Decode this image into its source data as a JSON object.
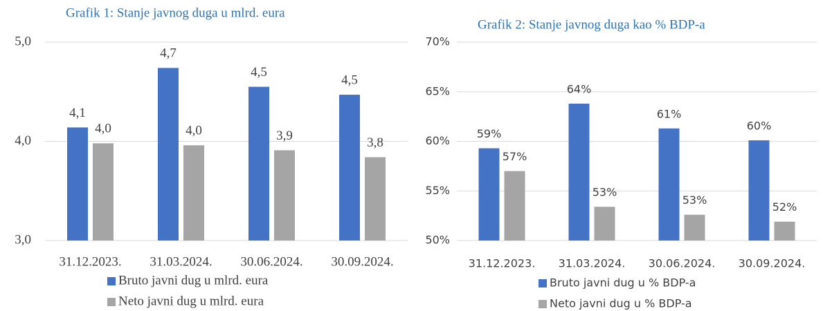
{
  "chart_data": [
    {
      "type": "bar",
      "title": "Grafik 1: Stanje javnog duga u mlrd. eura",
      "categories": [
        "31.12.2023.",
        "31.03.2024.",
        "30.06.2024.",
        "30.09.2024."
      ],
      "series": [
        {
          "name": "Bruto javni dug u mlrd. eura",
          "color": "#4472c4",
          "values": [
            4.14,
            4.74,
            4.55,
            4.47
          ],
          "value_labels": [
            "4,1",
            "4,7",
            "4,5",
            "4,5"
          ]
        },
        {
          "name": "Neto javni dug u mlrd. eura",
          "color": "#a5a5a5",
          "values": [
            3.98,
            3.96,
            3.91,
            3.84
          ],
          "value_labels": [
            "4,0",
            "4,0",
            "3,9",
            "3,8"
          ]
        }
      ],
      "ylim": [
        3.0,
        5.0
      ],
      "yticks": [
        {
          "value": 3.0,
          "label": "3,0"
        },
        {
          "value": 4.0,
          "label": "4,0"
        },
        {
          "value": 5.0,
          "label": "5,0"
        }
      ],
      "grid": true,
      "legend": "bottom"
    },
    {
      "type": "bar",
      "title": "Grafik 2: Stanje javnog duga kao % BDP-a",
      "categories": [
        "31.12.2023.",
        "31.03.2024.",
        "30.06.2024.",
        "30.09.2024."
      ],
      "series": [
        {
          "name": "Bruto javni dug u % BDP-a",
          "color": "#4472c4",
          "values": [
            59.3,
            63.8,
            61.3,
            60.1
          ],
          "value_labels": [
            "59%",
            "64%",
            "61%",
            "60%"
          ]
        },
        {
          "name": "Neto javni dug u % BDP-a",
          "color": "#a5a5a5",
          "values": [
            57.0,
            53.4,
            52.6,
            51.9
          ],
          "value_labels": [
            "57%",
            "53%",
            "53%",
            "52%"
          ]
        }
      ],
      "ylim": [
        50,
        70
      ],
      "yticks": [
        {
          "value": 50,
          "label": "50%"
        },
        {
          "value": 55,
          "label": "55%"
        },
        {
          "value": 60,
          "label": "60%"
        },
        {
          "value": 65,
          "label": "65%"
        },
        {
          "value": 70,
          "label": "70%"
        }
      ],
      "grid": true,
      "legend": "bottom"
    }
  ]
}
